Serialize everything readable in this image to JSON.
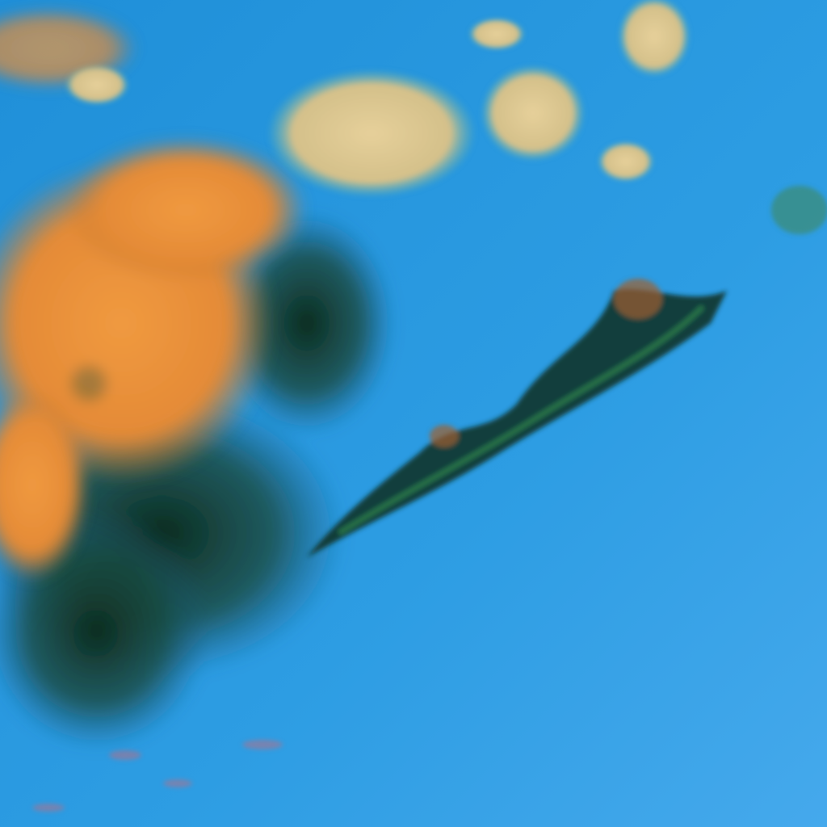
{
  "image": {
    "kind": "false-color satellite imagery",
    "colors": {
      "ocean": "#2d9de3",
      "ocean_light": "#4aaef0",
      "high_cloud": "#e08a35",
      "low_cloud": "#d8c690",
      "dark_streaks": "#0c2a1c",
      "green_edges": "#2f8a4a"
    }
  }
}
